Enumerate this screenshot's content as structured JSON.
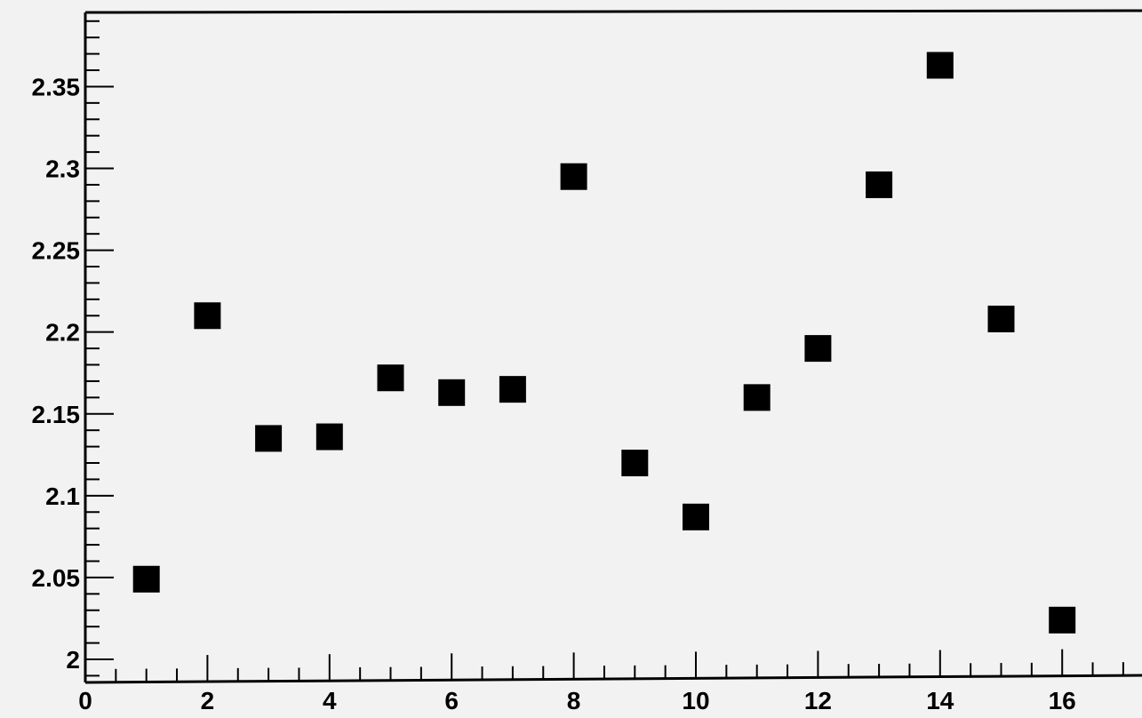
{
  "chart_data": {
    "type": "scatter",
    "title": "",
    "xlabel": "",
    "ylabel": "",
    "xlim": [
      0,
      17.5
    ],
    "ylim": [
      1.99,
      2.39
    ],
    "x_ticks": [
      0,
      2,
      4,
      6,
      8,
      10,
      12,
      14,
      16
    ],
    "x_tick_labels": [
      "0",
      "2",
      "4",
      "6",
      "8",
      "10",
      "12",
      "14",
      "16"
    ],
    "y_ticks": [
      2.0,
      2.05,
      2.1,
      2.15,
      2.2,
      2.25,
      2.3,
      2.35
    ],
    "y_tick_labels": [
      "2",
      "2.05",
      "2.1",
      "2.15",
      "2.2",
      "2.25",
      "2.3",
      "2.35"
    ],
    "grid": false,
    "legend": "none",
    "marker": "square",
    "marker_color": "#000000",
    "background_color": "#f2f2f2",
    "series": [
      {
        "x": [
          1,
          2,
          3,
          4,
          5,
          6,
          7,
          8,
          9,
          10,
          11,
          12,
          13,
          14,
          15,
          16
        ],
        "y": [
          2.049,
          2.21,
          2.135,
          2.136,
          2.172,
          2.163,
          2.165,
          2.295,
          2.12,
          2.087,
          2.16,
          2.19,
          2.29,
          2.363,
          2.208,
          2.024
        ]
      }
    ]
  }
}
